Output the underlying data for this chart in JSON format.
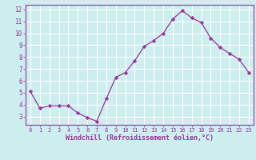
{
  "x": [
    0,
    1,
    2,
    3,
    4,
    5,
    6,
    7,
    8,
    9,
    10,
    11,
    12,
    13,
    14,
    15,
    16,
    17,
    18,
    19,
    20,
    21,
    22,
    23
  ],
  "y": [
    5.1,
    3.7,
    3.9,
    3.9,
    3.9,
    3.3,
    2.9,
    2.6,
    4.5,
    6.3,
    6.7,
    7.7,
    8.9,
    9.4,
    10.0,
    11.2,
    11.9,
    11.3,
    10.9,
    9.6,
    8.8,
    8.3,
    7.8,
    6.7
  ],
  "line_color": "#993399",
  "marker": "D",
  "marker_size": 2.2,
  "background_color": "#cceeee",
  "grid_color": "#ffffff",
  "xlabel": "Windchill (Refroidissement éolien,°C)",
  "ylabel": "",
  "title": "",
  "xlim": [
    -0.5,
    23.5
  ],
  "ylim": [
    2.3,
    12.4
  ],
  "yticks": [
    3,
    4,
    5,
    6,
    7,
    8,
    9,
    10,
    11,
    12
  ],
  "xticks": [
    0,
    1,
    2,
    3,
    4,
    5,
    6,
    7,
    8,
    9,
    10,
    11,
    12,
    13,
    14,
    15,
    16,
    17,
    18,
    19,
    20,
    21,
    22,
    23
  ],
  "tick_color": "#993399",
  "label_color": "#993399",
  "spine_color": "#993399",
  "xlabel_fontsize": 6.0,
  "tick_fontsize_x": 5.0,
  "tick_fontsize_y": 5.5
}
